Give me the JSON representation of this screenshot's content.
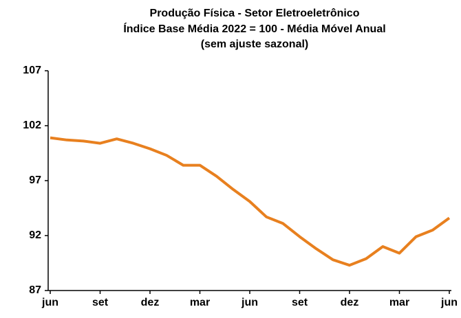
{
  "chart_data": {
    "type": "line",
    "title": [
      "Produção Física - Setor Eletroeletrônico",
      "Índice Base Média 2022 = 100 - Média Móvel Anual",
      "(sem ajuste sazonal)"
    ],
    "categories": [
      "jun",
      null,
      null,
      "set",
      null,
      null,
      "dez",
      null,
      null,
      "mar",
      null,
      null,
      "jun",
      null,
      null,
      "set",
      null,
      null,
      "dez",
      null,
      null,
      "mar",
      null,
      null,
      "jun"
    ],
    "series": [
      {
        "name": "Média Móvel Anual",
        "color": "#e8801f",
        "values": [
          100.9,
          100.7,
          100.6,
          100.4,
          100.8,
          100.4,
          99.9,
          99.3,
          98.4,
          98.4,
          97.4,
          96.2,
          95.1,
          93.7,
          93.1,
          91.9,
          90.8,
          89.8,
          89.3,
          89.9,
          91.0,
          90.4,
          91.9,
          92.5,
          93.6
        ]
      }
    ],
    "ylim": [
      87,
      107
    ],
    "yticks": [
      87,
      92,
      97,
      102,
      107
    ],
    "grid": false
  }
}
